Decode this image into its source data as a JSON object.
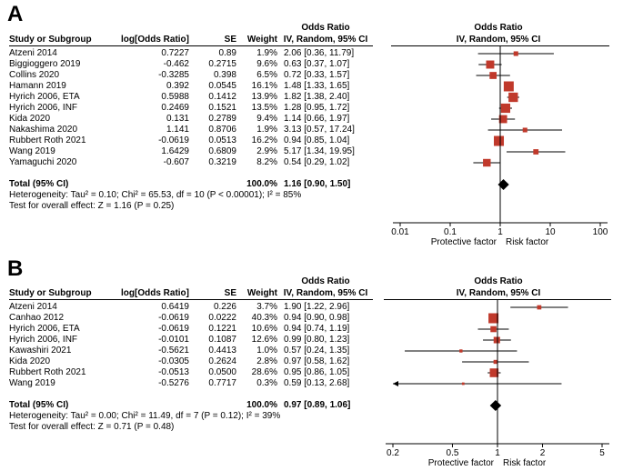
{
  "chart_data": [
    {
      "type": "forest",
      "panel": "A",
      "headers": {
        "group": "Odds Ratio",
        "method": "IV, Random, 95% CI",
        "study": "Study or Subgroup",
        "est": "log[Odds Ratio]",
        "se": "SE",
        "weight": "Weight",
        "plot_group": "Odds Ratio",
        "plot_method": "IV, Random, 95% CI"
      },
      "studies": [
        {
          "name": "Atzeni 2014",
          "est": "0.7227",
          "se": "0.89",
          "weight": "1.9%",
          "ci": "2.06 [0.36, 11.79]",
          "or": 2.06,
          "lo": 0.36,
          "hi": 11.79,
          "w": 1.9
        },
        {
          "name": "Biggioggero 2019",
          "est": "-0.462",
          "se": "0.2715",
          "weight": "9.6%",
          "ci": "0.63 [0.37, 1.07]",
          "or": 0.63,
          "lo": 0.37,
          "hi": 1.07,
          "w": 9.6
        },
        {
          "name": "Collins 2020",
          "est": "-0.3285",
          "se": "0.398",
          "weight": "6.5%",
          "ci": "0.72 [0.33, 1.57]",
          "or": 0.72,
          "lo": 0.33,
          "hi": 1.57,
          "w": 6.5
        },
        {
          "name": "Hamann 2019",
          "est": "0.392",
          "se": "0.0545",
          "weight": "16.1%",
          "ci": "1.48 [1.33, 1.65]",
          "or": 1.48,
          "lo": 1.33,
          "hi": 1.65,
          "w": 16.1
        },
        {
          "name": "Hyrich 2006, ETA",
          "est": "0.5988",
          "se": "0.1412",
          "weight": "13.9%",
          "ci": "1.82 [1.38, 2.40]",
          "or": 1.82,
          "lo": 1.38,
          "hi": 2.4,
          "w": 13.9
        },
        {
          "name": "Hyrich 2006, INF",
          "est": "0.2469",
          "se": "0.1521",
          "weight": "13.5%",
          "ci": "1.28 [0.95, 1.72]",
          "or": 1.28,
          "lo": 0.95,
          "hi": 1.72,
          "w": 13.5
        },
        {
          "name": "Kida 2020",
          "est": "0.131",
          "se": "0.2789",
          "weight": "9.4%",
          "ci": "1.14 [0.66, 1.97]",
          "or": 1.14,
          "lo": 0.66,
          "hi": 1.97,
          "w": 9.4
        },
        {
          "name": "Nakashima 2020",
          "est": "1.141",
          "se": "0.8706",
          "weight": "1.9%",
          "ci": "3.13 [0.57, 17.24]",
          "or": 3.13,
          "lo": 0.57,
          "hi": 17.24,
          "w": 1.9
        },
        {
          "name": "Rubbert Roth 2021",
          "est": "-0.0619",
          "se": "0.0513",
          "weight": "16.2%",
          "ci": "0.94 [0.85, 1.04]",
          "or": 0.94,
          "lo": 0.85,
          "hi": 1.04,
          "w": 16.2
        },
        {
          "name": "Wang 2019",
          "est": "1.6429",
          "se": "0.6809",
          "weight": "2.9%",
          "ci": "5.17 [1.34, 19.95]",
          "or": 5.17,
          "lo": 1.34,
          "hi": 19.95,
          "w": 2.9
        },
        {
          "name": "Yamaguchi 2020",
          "est": "-0.607",
          "se": "0.3219",
          "weight": "8.2%",
          "ci": "0.54 [0.29, 1.02]",
          "or": 0.54,
          "lo": 0.29,
          "hi": 1.02,
          "w": 8.2
        }
      ],
      "total": {
        "label": "Total (95% CI)",
        "weight": "100.0%",
        "ci": "1.16 [0.90, 1.50]",
        "or": 1.16,
        "lo": 0.9,
        "hi": 1.5
      },
      "heterogeneity": "Heterogeneity: Tau² = 0.10; Chi² = 65.53, df = 10 (P < 0.00001); I² = 85%",
      "overall": "Test for overall effect: Z = 1.16 (P = 0.25)",
      "axis": {
        "scale": "log",
        "min": 0.01,
        "max": 100,
        "ticks": [
          0.01,
          0.1,
          1,
          10,
          100
        ],
        "tick_labels": [
          "0.01",
          "0.1",
          "1",
          "10",
          "100"
        ]
      },
      "left_label": "Protective factor",
      "right_label": "Risk factor"
    },
    {
      "type": "forest",
      "panel": "B",
      "headers": {
        "group": "Odds Ratio",
        "method": "IV, Random, 95% CI",
        "study": "Study or Subgroup",
        "est": "log[Odds Ratio]",
        "se": "SE",
        "weight": "Weight",
        "plot_group": "Odds Ratio",
        "plot_method": "IV, Random, 95% CI"
      },
      "studies": [
        {
          "name": "Atzeni 2014",
          "est": "0.6419",
          "se": "0.226",
          "weight": "3.7%",
          "ci": "1.90 [1.22, 2.96]",
          "or": 1.9,
          "lo": 1.22,
          "hi": 2.96,
          "w": 3.7
        },
        {
          "name": "Canhao 2012",
          "est": "-0.0619",
          "se": "0.0222",
          "weight": "40.3%",
          "ci": "0.94 [0.90, 0.98]",
          "or": 0.94,
          "lo": 0.9,
          "hi": 0.98,
          "w": 40.3
        },
        {
          "name": "Hyrich 2006, ETA",
          "est": "-0.0619",
          "se": "0.1221",
          "weight": "10.6%",
          "ci": "0.94 [0.74, 1.19]",
          "or": 0.94,
          "lo": 0.74,
          "hi": 1.19,
          "w": 10.6
        },
        {
          "name": "Hyrich 2006, INF",
          "est": "-0.0101",
          "se": "0.1087",
          "weight": "12.6%",
          "ci": "0.99 [0.80, 1.23]",
          "or": 0.99,
          "lo": 0.8,
          "hi": 1.23,
          "w": 12.6
        },
        {
          "name": "Kawashiri 2021",
          "est": "-0.5621",
          "se": "0.4413",
          "weight": "1.0%",
          "ci": "0.57 [0.24, 1.35]",
          "or": 0.57,
          "lo": 0.24,
          "hi": 1.35,
          "w": 1.0
        },
        {
          "name": "Kida 2020",
          "est": "-0.0305",
          "se": "0.2624",
          "weight": "2.8%",
          "ci": "0.97 [0.58, 1.62]",
          "or": 0.97,
          "lo": 0.58,
          "hi": 1.62,
          "w": 2.8
        },
        {
          "name": "Rubbert Roth 2021",
          "est": "-0.0513",
          "se": "0.0500",
          "weight": "28.6%",
          "ci": "0.95 [0.86, 1.05]",
          "or": 0.95,
          "lo": 0.86,
          "hi": 1.05,
          "w": 28.6
        },
        {
          "name": "Wang 2019",
          "est": "-0.5276",
          "se": "0.7717",
          "weight": "0.3%",
          "ci": "0.59 [0.13, 2.68]",
          "or": 0.59,
          "lo": 0.13,
          "hi": 2.68,
          "w": 0.3
        }
      ],
      "total": {
        "label": "Total (95% CI)",
        "weight": "100.0%",
        "ci": "0.97 [0.89, 1.06]",
        "or": 0.97,
        "lo": 0.89,
        "hi": 1.06
      },
      "heterogeneity": "Heterogeneity: Tau² = 0.00; Chi² = 11.49, df = 7 (P = 0.12); I² = 39%",
      "overall": "Test for overall effect: Z = 0.71 (P = 0.48)",
      "axis": {
        "scale": "log",
        "min": 0.2,
        "max": 5,
        "ticks": [
          0.2,
          0.5,
          1,
          2,
          5
        ],
        "tick_labels": [
          "0.2",
          "0.5",
          "1",
          "2",
          "5"
        ]
      },
      "left_label": "Protective factor",
      "right_label": "Risk factor"
    }
  ],
  "colors": {
    "marker": "#c0392b",
    "line": "#000000",
    "ci_line": "#000000"
  }
}
